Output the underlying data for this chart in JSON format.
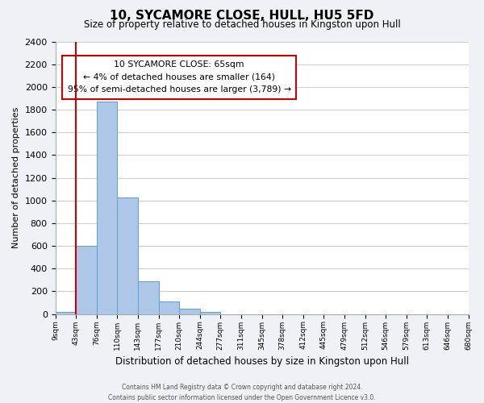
{
  "title": "10, SYCAMORE CLOSE, HULL, HU5 5FD",
  "subtitle": "Size of property relative to detached houses in Kingston upon Hull",
  "xlabel": "Distribution of detached houses by size in Kingston upon Hull",
  "ylabel": "Number of detached properties",
  "bin_labels": [
    "9sqm",
    "43sqm",
    "76sqm",
    "110sqm",
    "143sqm",
    "177sqm",
    "210sqm",
    "244sqm",
    "277sqm",
    "311sqm",
    "345sqm",
    "378sqm",
    "412sqm",
    "445sqm",
    "479sqm",
    "512sqm",
    "546sqm",
    "579sqm",
    "613sqm",
    "646sqm",
    "680sqm"
  ],
  "bar_heights": [
    20,
    600,
    1870,
    1030,
    285,
    110,
    45,
    20,
    0,
    0,
    0,
    0,
    0,
    0,
    0,
    0,
    0,
    0,
    0,
    0
  ],
  "bar_color": "#aec6e8",
  "bar_edge_color": "#5a9fd4",
  "vline_x": 1,
  "vline_color": "#cc0000",
  "ylim": [
    0,
    2400
  ],
  "yticks": [
    0,
    200,
    400,
    600,
    800,
    1000,
    1200,
    1400,
    1600,
    1800,
    2000,
    2200,
    2400
  ],
  "annotation_title": "10 SYCAMORE CLOSE: 65sqm",
  "annotation_line1": "← 4% of detached houses are smaller (164)",
  "annotation_line2": "95% of semi-detached houses are larger (3,789) →",
  "annotation_box_color": "#ffffff",
  "annotation_box_edge": "#cc0000",
  "footer_line1": "Contains HM Land Registry data © Crown copyright and database right 2024.",
  "footer_line2": "Contains public sector information licensed under the Open Government Licence v3.0.",
  "bg_color": "#eef2f7",
  "plot_bg_color": "#ffffff"
}
